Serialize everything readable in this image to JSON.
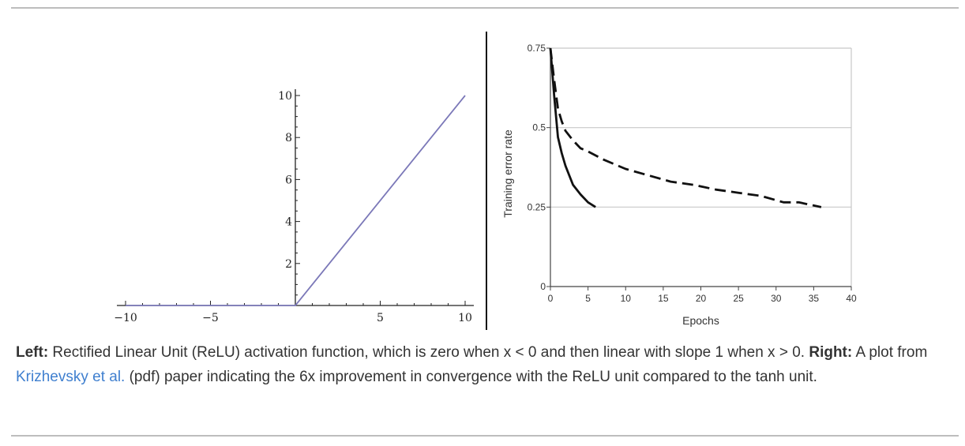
{
  "chart_data": [
    {
      "type": "line",
      "xlim": [
        -10,
        10
      ],
      "ylim": [
        0,
        10
      ],
      "x_ticks": [
        -10,
        -5,
        5,
        10
      ],
      "y_ticks": [
        2,
        4,
        6,
        8,
        10
      ],
      "series": [
        {
          "color": "#7b78b8",
          "x": [
            -10,
            0,
            10
          ],
          "y": [
            0,
            0,
            10
          ]
        }
      ]
    },
    {
      "type": "line",
      "xlabel": "Epochs",
      "ylabel": "Training error rate",
      "xlim": [
        0,
        40
      ],
      "ylim": [
        0,
        0.75
      ],
      "x_ticks": [
        0,
        5,
        10,
        15,
        20,
        25,
        30,
        35,
        40
      ],
      "y_ticks": [
        "0",
        "0.25",
        "0.5",
        "0.75"
      ],
      "grid": "horizontal",
      "series": [
        {
          "style": "solid",
          "x": [
            0,
            0.5,
            1,
            1.5,
            2,
            3,
            4,
            5,
            6
          ],
          "y": [
            0.75,
            0.6,
            0.47,
            0.42,
            0.38,
            0.32,
            0.29,
            0.265,
            0.25
          ]
        },
        {
          "style": "dashed",
          "x": [
            0,
            0.5,
            1,
            1.5,
            2,
            3,
            4,
            5,
            7,
            10,
            13,
            16,
            19,
            22,
            25,
            28,
            31,
            33,
            36
          ],
          "y": [
            0.75,
            0.65,
            0.56,
            0.52,
            0.49,
            0.46,
            0.435,
            0.425,
            0.4,
            0.37,
            0.35,
            0.33,
            0.32,
            0.305,
            0.295,
            0.285,
            0.265,
            0.265,
            0.25
          ]
        }
      ]
    }
  ],
  "caption": {
    "left_label": "Left:",
    "part1": " Rectified Linear Unit (ReLU) activation function, which is zero when x < 0 and then linear with slope 1 when x > 0. ",
    "right_label": "Right:",
    "part2": " A plot from ",
    "link_text": "Krizhevsky et al.",
    "part3": " (pdf) paper indicating the 6x improvement in convergence with the ReLU unit compared to the tanh unit."
  },
  "colors": {
    "relu_line": "#7b78b8",
    "link": "#3f7fcf",
    "gridline": "#c8c8c8"
  }
}
